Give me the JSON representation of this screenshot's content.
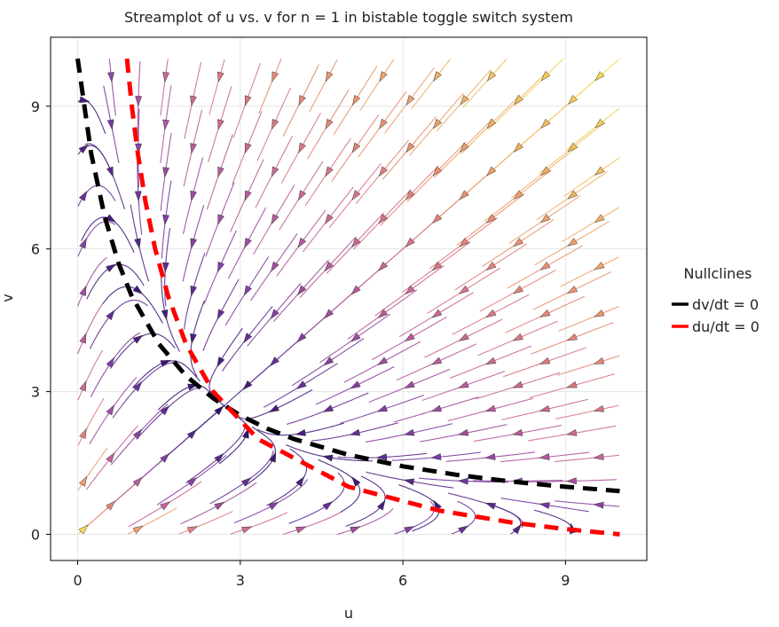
{
  "chart_data": {
    "type": "streamplot",
    "title": "Streamplot of u vs. v for n = 1 in bistable toggle switch system",
    "xlabel": "u",
    "ylabel": "v",
    "xlim": [
      -0.5,
      10.5
    ],
    "ylim": [
      -0.55,
      10.45
    ],
    "xticks": [
      0,
      3,
      6,
      9
    ],
    "yticks": [
      0,
      3,
      6,
      9
    ],
    "grid": true,
    "field_domain": {
      "u": [
        0,
        10
      ],
      "v": [
        0,
        10
      ]
    },
    "system": {
      "alpha": 10,
      "n": 1
    },
    "legend": {
      "title": "Nullclines",
      "placement": "right",
      "entries": [
        {
          "label": "dv/dt = 0",
          "color": "#000000"
        },
        {
          "label": "du/dt = 0",
          "color": "#ff0000"
        }
      ]
    },
    "nullclines": [
      {
        "name": "dv/dt = 0",
        "color": "#000000",
        "u": [
          0,
          0.25,
          0.5,
          0.75,
          1,
          1.5,
          2,
          2.5,
          3,
          3.5,
          4,
          5,
          6,
          7,
          8,
          9,
          10
        ],
        "v": [
          10,
          8,
          6.67,
          5.71,
          5,
          4,
          3.33,
          2.86,
          2.5,
          2.22,
          2,
          1.67,
          1.43,
          1.25,
          1.11,
          1,
          0.91
        ]
      },
      {
        "name": "du/dt = 0",
        "color": "#ff0000",
        "u": [
          0.91,
          1,
          1.11,
          1.25,
          1.43,
          1.67,
          2,
          2.5,
          3.33,
          5,
          6.67,
          8,
          9,
          10
        ],
        "v": [
          10,
          9,
          8,
          7,
          6,
          5,
          4,
          3,
          2,
          1,
          0.5,
          0.25,
          0.11,
          0
        ]
      }
    ],
    "colormap": [
      "#2a0f6b",
      "#7a3aa3",
      "#c2609b",
      "#e98a72",
      "#f3c05d",
      "#f4f05a"
    ]
  }
}
